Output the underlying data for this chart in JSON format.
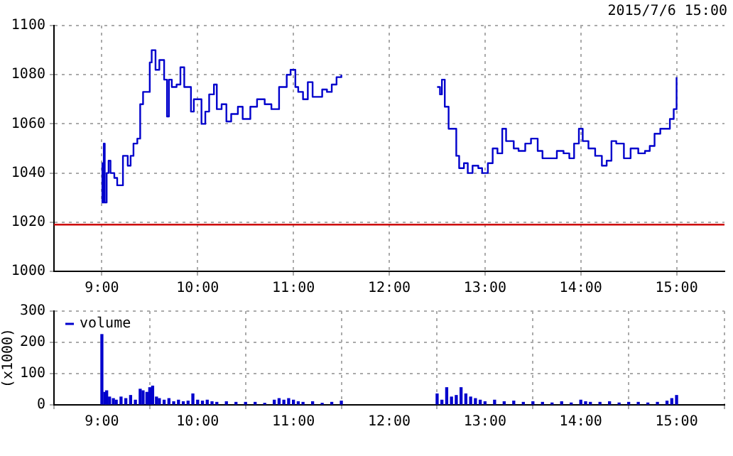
{
  "chart_data": [
    {
      "type": "step",
      "subtitle": "2015/7/6 15:00",
      "x": [
        9.0,
        9.005,
        9.02,
        9.03,
        9.05,
        9.07,
        9.09,
        9.13,
        9.16,
        9.22,
        9.27,
        9.3,
        9.33,
        9.37,
        9.4,
        9.43,
        9.5,
        9.52,
        9.56,
        9.6,
        9.65,
        9.68,
        9.7,
        9.73,
        9.78,
        9.82,
        9.86,
        9.93,
        9.96,
        10.04,
        10.08,
        10.12,
        10.17,
        10.2,
        10.25,
        10.3,
        10.35,
        10.42,
        10.47,
        10.55,
        10.62,
        10.7,
        10.77,
        10.85,
        10.93,
        10.97,
        11.02,
        11.05,
        11.1,
        11.15,
        11.2,
        11.3,
        11.35,
        11.4,
        11.45,
        11.5,
        12.0,
        12.5,
        12.53,
        12.55,
        12.58,
        12.62,
        12.66,
        12.7,
        12.73,
        12.78,
        12.82,
        12.87,
        12.93,
        12.97,
        13.03,
        13.08,
        13.13,
        13.18,
        13.22,
        13.3,
        13.35,
        13.42,
        13.48,
        13.55,
        13.6,
        13.68,
        13.75,
        13.82,
        13.88,
        13.93,
        13.98,
        14.02,
        14.08,
        14.15,
        14.22,
        14.27,
        14.32,
        14.37,
        14.45,
        14.52,
        14.6,
        14.67,
        14.72,
        14.77,
        14.83,
        14.88,
        14.93,
        14.97,
        15.0
      ],
      "series": [
        {
          "color": "#0000cc",
          "values": [
            1044,
            1028,
            1052,
            1028,
            1040,
            1045,
            1040,
            1038,
            1035,
            1047,
            1043,
            1047,
            1052,
            1054,
            1068,
            1073,
            1085,
            1090,
            1082,
            1086,
            1078,
            1063,
            1078,
            1075,
            1076,
            1083,
            1075,
            1065,
            1070,
            1060,
            1065,
            1072,
            1076,
            1066,
            1068,
            1061,
            1064,
            1067,
            1062,
            1067,
            1070,
            1068,
            1066,
            1075,
            1080,
            1082,
            1075,
            1073,
            1070,
            1077,
            1071,
            1074,
            1073,
            1076,
            1079,
            1080,
            null,
            1075,
            1072,
            1078,
            1067,
            1058,
            1058,
            1047,
            1042,
            1044,
            1040,
            1043,
            1042,
            1040,
            1044,
            1050,
            1048,
            1058,
            1053,
            1050,
            1049,
            1052,
            1054,
            1049,
            1046,
            1046,
            1049,
            1048,
            1046,
            1052,
            1058,
            1053,
            1050,
            1047,
            1043,
            1045,
            1053,
            1052,
            1046,
            1050,
            1048,
            1049,
            1051,
            1056,
            1058,
            1058,
            1062,
            1066,
            1079
          ]
        }
      ],
      "xlim": [
        8.5,
        15.5
      ],
      "xticks": [
        {
          "value": 9,
          "label": "9:00"
        },
        {
          "value": 10,
          "label": "10:00"
        },
        {
          "value": 11,
          "label": "11:00"
        },
        {
          "value": 12,
          "label": "12:00"
        },
        {
          "value": 13,
          "label": "13:00"
        },
        {
          "value": 14,
          "label": "14:00"
        },
        {
          "value": 15,
          "label": "15:00"
        }
      ],
      "ylim": [
        1000,
        1100
      ],
      "yticks": [
        1000,
        1020,
        1040,
        1060,
        1080,
        1100
      ],
      "ref_lines": [
        {
          "axis": "y",
          "value": 1019,
          "color": "#cc0000"
        }
      ],
      "grid": true
    },
    {
      "type": "bar",
      "ylabel": "(x1000)",
      "legend": "top left",
      "x": [
        9.0,
        9.03,
        9.05,
        9.08,
        9.12,
        9.15,
        9.2,
        9.25,
        9.3,
        9.35,
        9.4,
        9.43,
        9.47,
        9.5,
        9.53,
        9.57,
        9.6,
        9.65,
        9.7,
        9.75,
        9.8,
        9.85,
        9.9,
        9.95,
        10.0,
        10.05,
        10.1,
        10.15,
        10.2,
        10.3,
        10.4,
        10.5,
        10.6,
        10.7,
        10.8,
        10.85,
        10.9,
        10.95,
        11.0,
        11.05,
        11.1,
        11.2,
        11.3,
        11.4,
        11.5,
        12.5,
        12.55,
        12.6,
        12.65,
        12.7,
        12.75,
        12.8,
        12.85,
        12.9,
        12.95,
        13.0,
        13.1,
        13.2,
        13.3,
        13.4,
        13.5,
        13.6,
        13.7,
        13.8,
        13.9,
        14.0,
        14.05,
        14.1,
        14.2,
        14.3,
        14.4,
        14.5,
        14.6,
        14.7,
        14.8,
        14.9,
        14.95,
        15.0
      ],
      "series": [
        {
          "name": "volume",
          "color": "#0000cc",
          "values": [
            225,
            40,
            45,
            25,
            20,
            15,
            25,
            20,
            30,
            15,
            50,
            45,
            40,
            55,
            60,
            25,
            20,
            15,
            20,
            10,
            15,
            10,
            12,
            35,
            15,
            12,
            15,
            10,
            8,
            10,
            8,
            8,
            8,
            5,
            15,
            20,
            15,
            20,
            15,
            10,
            8,
            10,
            5,
            8,
            12,
            35,
            15,
            55,
            25,
            30,
            55,
            35,
            25,
            20,
            15,
            10,
            15,
            10,
            12,
            8,
            10,
            8,
            6,
            10,
            6,
            15,
            10,
            8,
            8,
            10,
            6,
            8,
            8,
            6,
            8,
            12,
            20,
            30
          ]
        }
      ],
      "xlim": [
        8.5,
        15.5
      ],
      "xticks": [
        {
          "value": 9,
          "label": "9:00"
        },
        {
          "value": 10,
          "label": "10:00"
        },
        {
          "value": 11,
          "label": "11:00"
        },
        {
          "value": 12,
          "label": "12:00"
        },
        {
          "value": 13,
          "label": "13:00"
        },
        {
          "value": 14,
          "label": "14:00"
        },
        {
          "value": 15,
          "label": "15:00"
        }
      ],
      "ylim": [
        0,
        300
      ],
      "yticks": [
        0,
        100,
        200,
        300
      ],
      "grid": true
    }
  ]
}
